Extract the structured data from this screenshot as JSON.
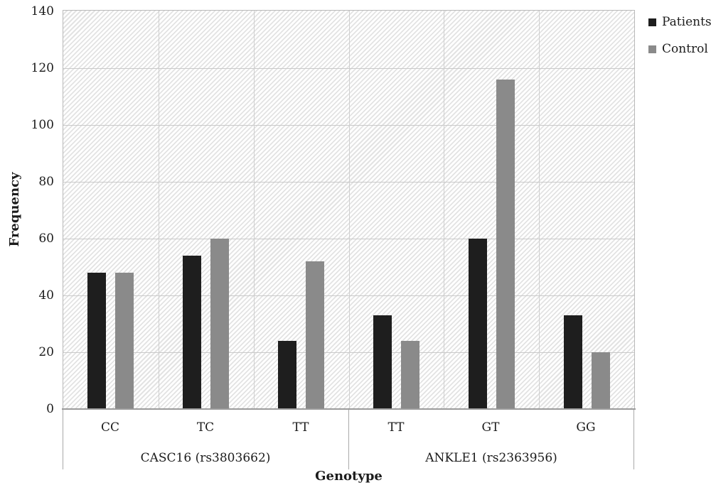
{
  "chart_data": {
    "type": "bar",
    "title": "",
    "xlabel": "Genotype",
    "ylabel": "Frequency",
    "ylim": [
      0,
      140
    ],
    "yticks": [
      0,
      20,
      40,
      60,
      80,
      100,
      120,
      140
    ],
    "grid": true,
    "legend_position": "top-right",
    "plot_background": "diagonal-hatch",
    "groups": [
      {
        "label": "CASC16 (rs3803662)",
        "categories": [
          "CC",
          "TC",
          "TT"
        ]
      },
      {
        "label": "ANKLE1 (rs2363956)",
        "categories": [
          "TT",
          "GT",
          "GG"
        ]
      }
    ],
    "series": [
      {
        "name": "Patients",
        "color": "#1e1e1e",
        "values": [
          48,
          54,
          24,
          33,
          60,
          33
        ]
      },
      {
        "name": "Control",
        "color": "#8a8a8a",
        "values": [
          48,
          60,
          52,
          24,
          116,
          20
        ]
      }
    ]
  }
}
